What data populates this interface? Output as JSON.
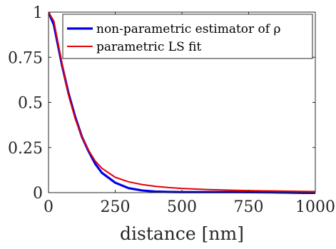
{
  "chart_data": {
    "type": "line",
    "title": "",
    "xlabel": "distance [nm]",
    "ylabel": "",
    "xlim": [
      0,
      1000
    ],
    "ylim": [
      0,
      1
    ],
    "xticks": [
      0,
      250,
      500,
      750,
      1000
    ],
    "xtick_labels": [
      "0",
      "250",
      "500",
      "750",
      "1000"
    ],
    "yticks": [
      0,
      0.25,
      0.5,
      0.75,
      1
    ],
    "ytick_labels": [
      "0",
      "0.25",
      "0.5",
      "0.75",
      "1"
    ],
    "grid": false,
    "legend_position": "top-right",
    "series": [
      {
        "name": "non-parametric estimator of ρ",
        "color": "#0000e6",
        "x": [
          0,
          20,
          50,
          75,
          100,
          125,
          150,
          175,
          200,
          250,
          300,
          350,
          400,
          450,
          500,
          600,
          700,
          800,
          900,
          1000
        ],
        "y": [
          1.0,
          0.93,
          0.71,
          0.55,
          0.42,
          0.31,
          0.23,
          0.16,
          0.11,
          0.055,
          0.025,
          0.012,
          0.006,
          0.004,
          0.003,
          0.003,
          0.003,
          0.002,
          0.0,
          -0.003
        ]
      },
      {
        "name": "parametric LS fit",
        "color": "#e60000",
        "x": [
          0,
          20,
          50,
          75,
          100,
          125,
          150,
          175,
          200,
          250,
          300,
          350,
          400,
          450,
          500,
          600,
          700,
          800,
          900,
          1000
        ],
        "y": [
          1.0,
          0.95,
          0.72,
          0.54,
          0.41,
          0.31,
          0.235,
          0.175,
          0.135,
          0.085,
          0.06,
          0.045,
          0.035,
          0.028,
          0.023,
          0.017,
          0.013,
          0.01,
          0.008,
          0.006
        ]
      }
    ]
  }
}
